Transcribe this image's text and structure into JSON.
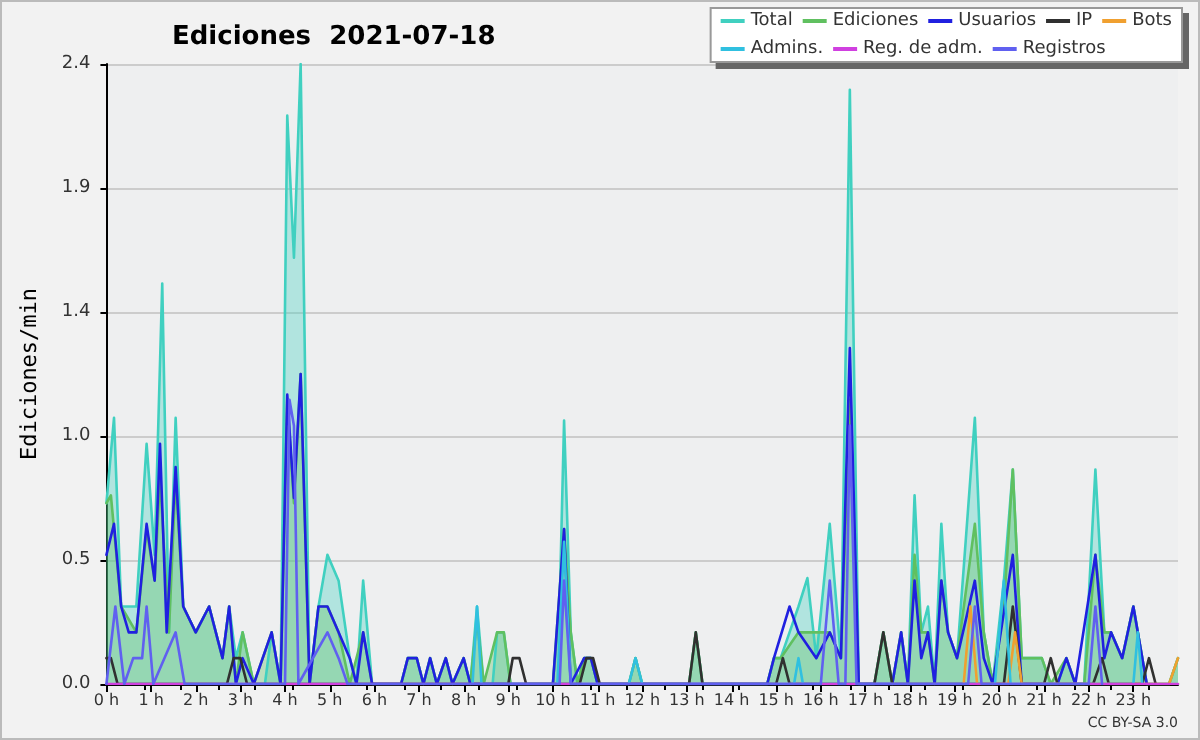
{
  "chart_data": {
    "type": "line",
    "title": "Ediciones  2021-07-18",
    "ylabel": "Ediciones/min",
    "annotations": [
      "CC BY-SA 3.0"
    ],
    "xlim": [
      0,
      24
    ],
    "ylim": [
      0,
      2.4
    ],
    "xticks": [
      {
        "value": 0,
        "label": "0 h"
      },
      {
        "value": 1,
        "label": "1 h"
      },
      {
        "value": 2,
        "label": "2 h"
      },
      {
        "value": 3,
        "label": "3 h"
      },
      {
        "value": 4,
        "label": "4 h"
      },
      {
        "value": 5,
        "label": "5 h"
      },
      {
        "value": 6,
        "label": "6 h"
      },
      {
        "value": 7,
        "label": "7 h"
      },
      {
        "value": 8,
        "label": "8 h"
      },
      {
        "value": 9,
        "label": "9 h"
      },
      {
        "value": 10,
        "label": "10 h"
      },
      {
        "value": 11,
        "label": "11 h"
      },
      {
        "value": 12,
        "label": "12 h"
      },
      {
        "value": 13,
        "label": "13 h"
      },
      {
        "value": 14,
        "label": "14 h"
      },
      {
        "value": 15,
        "label": "15 h"
      },
      {
        "value": 16,
        "label": "16 h"
      },
      {
        "value": 17,
        "label": "17 h"
      },
      {
        "value": 18,
        "label": "18 h"
      },
      {
        "value": 19,
        "label": "19 h"
      },
      {
        "value": 20,
        "label": "20 h"
      },
      {
        "value": 21,
        "label": "21 h"
      },
      {
        "value": 22,
        "label": "22 h"
      },
      {
        "value": 23,
        "label": "23 h"
      }
    ],
    "yticks": [
      {
        "value": 0,
        "label": "0.0"
      },
      {
        "value": 0.48,
        "label": "0.5"
      },
      {
        "value": 0.96,
        "label": "1.0"
      },
      {
        "value": 1.44,
        "label": "1.4"
      },
      {
        "value": 1.92,
        "label": "1.9"
      },
      {
        "value": 2.4,
        "label": "2.4"
      }
    ],
    "grid": "y",
    "legend": "top right",
    "marker": "none",
    "line_style": "solid",
    "series": [
      {
        "name": "Total",
        "type": "area",
        "color": "#40d0c0",
        "x": [
          0,
          0.17,
          0.33,
          0.67,
          0.9,
          1.08,
          1.25,
          1.4,
          1.55,
          1.72,
          2.0,
          2.3,
          2.6,
          2.75,
          2.9,
          3.05,
          3.3,
          3.55,
          3.7,
          3.9,
          4.05,
          4.2,
          4.35,
          4.55,
          4.75,
          4.95,
          5.2,
          5.45,
          5.6,
          5.75,
          5.95,
          6.6,
          6.75,
          6.95,
          7.1,
          7.25,
          7.4,
          7.6,
          7.75,
          8.0,
          8.15,
          8.3,
          8.45,
          8.65,
          8.75,
          8.9,
          9.05,
          10.0,
          10.15,
          10.25,
          10.4,
          10.55,
          10.7,
          10.85,
          11.0,
          11.7,
          11.85,
          12.0,
          13.05,
          13.2,
          13.35,
          14.8,
          14.95,
          15.1,
          15.3,
          15.5,
          15.7,
          15.9,
          16.2,
          16.45,
          16.65,
          16.85,
          17.2,
          17.4,
          17.6,
          17.8,
          17.95,
          18.1,
          18.25,
          18.4,
          18.55,
          18.7,
          18.85,
          19.05,
          19.45,
          19.65,
          19.85,
          20.1,
          20.3,
          20.5,
          20.75,
          20.95,
          21.15,
          21.3,
          21.5,
          21.7,
          21.9,
          22.15,
          22.35,
          22.5,
          22.75,
          23.0,
          23.3,
          23.8,
          24
        ],
        "values": [
          0.7,
          1.03,
          0.3,
          0.3,
          0.93,
          0.5,
          1.55,
          0.2,
          1.03,
          0.3,
          0.2,
          0.3,
          0.1,
          0.3,
          0.1,
          0.2,
          0,
          0,
          0.2,
          0,
          2.2,
          1.65,
          2.4,
          0,
          0.3,
          0.5,
          0.4,
          0.1,
          0,
          0.4,
          0,
          0,
          0.1,
          0.1,
          0,
          0.1,
          0,
          0.1,
          0,
          0.1,
          0,
          0.3,
          0,
          0,
          0.2,
          0.2,
          0,
          0,
          0.3,
          1.02,
          0.2,
          0,
          0.1,
          0.1,
          0,
          0,
          0.1,
          0,
          0,
          0.2,
          0,
          0,
          0.1,
          0.1,
          0.2,
          0.3,
          0.41,
          0.1,
          0.62,
          0.1,
          2.3,
          0,
          0,
          0.2,
          0,
          0.2,
          0,
          0.73,
          0.2,
          0.3,
          0,
          0.62,
          0.2,
          0.1,
          1.03,
          0.2,
          0,
          0.4,
          0.83,
          0.1,
          0.1,
          0.1,
          0,
          0,
          0.1,
          0,
          0,
          0.83,
          0.2,
          0.2,
          0.1,
          0.3,
          0,
          0,
          0.1
        ]
      },
      {
        "name": "Ediciones",
        "type": "area",
        "color": "#60c060",
        "x": [
          0,
          0.1,
          0.33,
          0.67,
          0.9,
          1.08,
          1.2,
          1.4,
          1.55,
          1.72,
          2.0,
          2.3,
          2.6,
          2.75,
          2.9,
          3.05,
          3.3,
          3.7,
          3.9,
          4.05,
          4.2,
          4.35,
          4.55,
          4.75,
          4.95,
          5.2,
          5.45,
          5.75,
          5.95,
          6.6,
          6.75,
          6.95,
          7.1,
          7.25,
          7.4,
          7.6,
          7.75,
          8.0,
          8.15,
          8.3,
          8.45,
          8.75,
          8.9,
          9.05,
          10.0,
          10.25,
          10.4,
          10.55,
          10.7,
          10.85,
          11.0,
          11.7,
          11.85,
          12.0,
          13.05,
          13.2,
          13.35,
          14.8,
          14.95,
          15.1,
          15.5,
          15.7,
          16.2,
          16.45,
          16.65,
          16.85,
          17.2,
          17.4,
          17.6,
          17.8,
          17.95,
          18.1,
          18.25,
          18.4,
          18.55,
          18.7,
          18.85,
          19.05,
          19.45,
          19.65,
          19.85,
          20.1,
          20.3,
          20.5,
          20.75,
          20.95,
          21.15,
          21.5,
          21.7,
          21.9,
          22.15,
          22.35,
          22.5,
          22.75,
          23.0,
          23.3,
          23.8,
          24
        ],
        "values": [
          0.7,
          0.73,
          0.3,
          0.2,
          0.6,
          0.4,
          0.8,
          0.2,
          0.8,
          0.3,
          0.2,
          0.3,
          0.1,
          0.3,
          0,
          0.2,
          0,
          0.2,
          0,
          1.1,
          0.7,
          1.2,
          0,
          0.3,
          0.3,
          0.2,
          0,
          0.2,
          0,
          0,
          0.1,
          0.1,
          0,
          0.1,
          0,
          0.1,
          0,
          0.1,
          0,
          0.25,
          0,
          0.2,
          0.2,
          0,
          0,
          0.6,
          0.2,
          0,
          0.1,
          0.1,
          0,
          0,
          0.1,
          0,
          0,
          0.2,
          0,
          0,
          0.1,
          0.1,
          0.2,
          0.2,
          0.2,
          0.1,
          1.1,
          0,
          0,
          0.2,
          0,
          0.2,
          0,
          0.5,
          0.2,
          0.2,
          0,
          0.4,
          0.2,
          0.1,
          0.62,
          0.2,
          0,
          0.3,
          0.83,
          0.1,
          0.1,
          0.1,
          0,
          0.1,
          0,
          0,
          0.5,
          0.2,
          0.2,
          0.1,
          0.3,
          0,
          0,
          0.1
        ]
      },
      {
        "name": "Usuarios",
        "type": "line",
        "color": "#2020e0",
        "x": [
          0,
          0.17,
          0.33,
          0.5,
          0.67,
          0.9,
          1.08,
          1.2,
          1.35,
          1.55,
          1.72,
          2.0,
          2.3,
          2.6,
          2.75,
          2.9,
          3.05,
          3.3,
          3.7,
          3.9,
          4.05,
          4.2,
          4.35,
          4.55,
          4.75,
          4.95,
          5.2,
          5.45,
          5.6,
          5.75,
          5.95,
          6.6,
          6.75,
          6.95,
          7.1,
          7.25,
          7.4,
          7.6,
          7.75,
          8.0,
          8.15,
          10.0,
          10.25,
          10.4,
          10.7,
          10.85,
          11.0,
          14.8,
          14.95,
          15.3,
          15.5,
          15.9,
          16.2,
          16.45,
          16.65,
          16.85,
          17.6,
          17.8,
          17.95,
          18.1,
          18.25,
          18.4,
          18.55,
          18.7,
          18.85,
          19.05,
          19.45,
          19.65,
          19.85,
          20.3,
          20.5,
          21.3,
          21.5,
          21.7,
          22.15,
          22.35,
          22.5,
          22.75,
          23.0,
          23.3
        ],
        "values": [
          0.5,
          0.62,
          0.3,
          0.2,
          0.2,
          0.62,
          0.4,
          0.93,
          0.2,
          0.84,
          0.3,
          0.2,
          0.3,
          0.1,
          0.3,
          0,
          0.1,
          0,
          0.2,
          0,
          1.12,
          0.72,
          1.2,
          0,
          0.3,
          0.3,
          0.2,
          0.1,
          0,
          0.2,
          0,
          0,
          0.1,
          0.1,
          0,
          0.1,
          0,
          0.1,
          0,
          0.1,
          0,
          0,
          0.6,
          0,
          0.1,
          0.1,
          0,
          0,
          0.1,
          0.3,
          0.2,
          0.1,
          0.2,
          0.1,
          1.3,
          0,
          0,
          0.2,
          0,
          0.4,
          0.1,
          0.2,
          0,
          0.4,
          0.2,
          0.1,
          0.4,
          0.1,
          0,
          0.5,
          0,
          0,
          0.1,
          0,
          0.5,
          0.1,
          0.2,
          0.1,
          0.3,
          0
        ]
      },
      {
        "name": "IP",
        "type": "line",
        "color": "#303030",
        "x": [
          0,
          0.1,
          0.25,
          2.7,
          2.85,
          3.0,
          3.15,
          9.0,
          9.1,
          9.25,
          9.4,
          10.6,
          10.75,
          10.9,
          11.05,
          13.05,
          13.2,
          13.35,
          15.0,
          15.15,
          15.3,
          17.2,
          17.4,
          17.6,
          20.1,
          20.3,
          20.5,
          21.0,
          21.15,
          21.3,
          22.1,
          22.3,
          22.45,
          23.2,
          23.35,
          23.5
        ],
        "values": [
          0.1,
          0.1,
          0,
          0,
          0.1,
          0.1,
          0,
          0,
          0.1,
          0.1,
          0,
          0,
          0.1,
          0.1,
          0,
          0,
          0.2,
          0,
          0,
          0.1,
          0,
          0,
          0.2,
          0,
          0,
          0.3,
          0,
          0,
          0.1,
          0,
          0,
          0.1,
          0,
          0,
          0.1,
          0
        ]
      },
      {
        "name": "Bots",
        "type": "line",
        "color": "#f0a030",
        "x": [
          19.2,
          19.35,
          19.5,
          20.2,
          20.35,
          20.5,
          23.8,
          24
        ],
        "values": [
          0,
          0.3,
          0,
          0,
          0.2,
          0,
          0,
          0.1
        ]
      },
      {
        "name": "Admins.",
        "type": "line",
        "color": "#30c0e0",
        "x": [
          8.2,
          8.3,
          8.4,
          10.1,
          10.25,
          10.4,
          11.7,
          11.85,
          12.0,
          15.4,
          15.5,
          15.6,
          19.9,
          20.1,
          20.25,
          23.0,
          23.1,
          23.2
        ],
        "values": [
          0,
          0.3,
          0,
          0,
          0.55,
          0,
          0,
          0.1,
          0,
          0,
          0.1,
          0,
          0,
          0.4,
          0,
          0,
          0.2,
          0
        ]
      },
      {
        "name": "Reg. de adm.",
        "type": "line",
        "color": "#d040e0",
        "x": [
          0,
          24
        ],
        "values": [
          0,
          0
        ]
      },
      {
        "name": "Registros",
        "type": "line",
        "color": "#6060f0",
        "x": [
          0,
          0.2,
          0.4,
          0.6,
          0.8,
          0.9,
          1.05,
          1.55,
          1.75,
          4.0,
          4.1,
          4.2,
          4.3,
          4.95,
          5.2,
          5.4,
          10.15,
          10.25,
          10.4,
          16.0,
          16.2,
          16.4,
          16.55,
          16.65,
          16.8,
          19.3,
          19.45,
          19.6,
          22.0,
          22.15,
          22.3
        ],
        "values": [
          0,
          0.3,
          0,
          0.1,
          0.1,
          0.3,
          0,
          0.2,
          0,
          0,
          1.1,
          1.0,
          0,
          0.2,
          0.1,
          0,
          0,
          0.4,
          0,
          0,
          0.4,
          0,
          0,
          1.0,
          0,
          0,
          0.3,
          0,
          0,
          0.3,
          0
        ]
      }
    ]
  }
}
